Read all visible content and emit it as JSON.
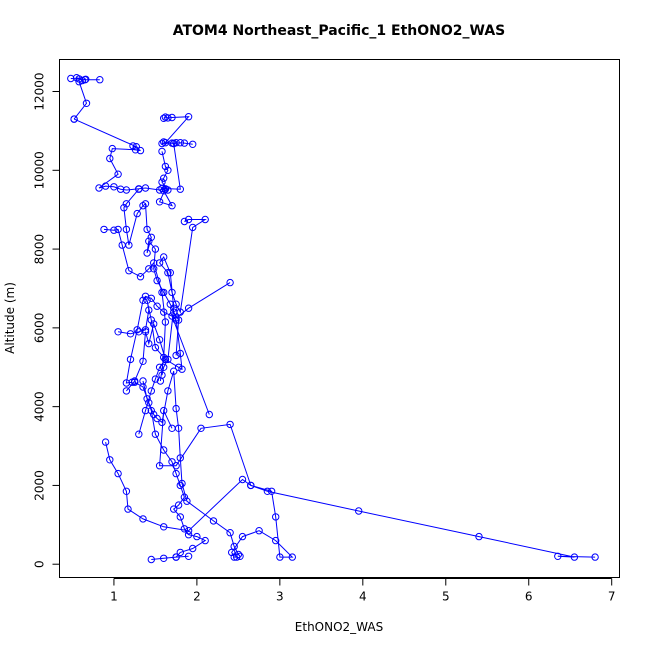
{
  "chart_data": {
    "type": "scatter",
    "title": "ATOM4 Northeast_Pacific_1 EthONO2_WAS",
    "xlabel": "EthONO2_WAS",
    "ylabel": "Altitude (m)",
    "xlim": [
      0.35,
      7.1
    ],
    "ylim": [
      -350,
      12800
    ],
    "xticks": [
      1,
      2,
      3,
      4,
      5,
      6,
      7
    ],
    "yticks": [
      0,
      2000,
      4000,
      6000,
      8000,
      10000,
      12000
    ],
    "grid": false,
    "legend": "none",
    "series_color": "#0000ff",
    "series": [
      {
        "x": [
          0.83,
          0.65,
          0.55,
          0.58,
          0.62,
          0.66,
          0.48
        ],
        "y": [
          12300,
          12300,
          12350,
          12320,
          12280,
          12310,
          12330
        ]
      },
      {
        "x": [
          0.52,
          0.67,
          0.58
        ],
        "y": [
          11300,
          11700,
          12250
        ]
      },
      {
        "x": [
          0.52,
          1.27,
          1.23,
          1.32,
          1.26,
          0.98,
          0.95,
          1.05,
          0.82,
          0.9,
          1.0,
          1.08,
          1.15,
          1.3,
          1.38,
          1.55,
          1.62
        ],
        "y": [
          11300,
          10600,
          10620,
          10500,
          10520,
          10550,
          10300,
          9900,
          9550,
          9600,
          9580,
          9520,
          9500,
          9530,
          9550,
          9500,
          9520
        ]
      },
      {
        "x": [
          1.6,
          1.62,
          1.65,
          1.7,
          1.9,
          1.62,
          1.58,
          1.7,
          1.75,
          1.72,
          1.8,
          1.85,
          1.95
        ],
        "y": [
          11320,
          11350,
          11330,
          11340,
          11360,
          10700,
          10680,
          10690,
          10700,
          10680,
          10700,
          10690,
          10660
        ]
      },
      {
        "x": [
          1.58,
          1.62,
          1.65,
          1.6,
          1.58,
          1.65,
          1.6,
          1.7,
          1.55,
          1.62,
          1.58,
          1.8,
          1.72,
          1.6
        ],
        "y": [
          10480,
          10100,
          10000,
          9800,
          9700,
          9500,
          9480,
          9100,
          9200,
          9530,
          9540,
          9520,
          10680,
          10720
        ]
      },
      {
        "x": [
          1.3,
          1.15,
          1.12,
          1.15,
          1.18,
          1.28,
          1.35,
          1.38,
          1.4,
          1.45,
          1.4,
          1.42,
          1.5,
          1.48,
          1.52,
          1.6,
          1.68,
          1.72,
          1.78,
          1.75
        ],
        "y": [
          9520,
          9150,
          9050,
          8500,
          8100,
          8900,
          9100,
          9150,
          8500,
          8300,
          7900,
          8200,
          8000,
          7500,
          7200,
          6900,
          6600,
          6400,
          6200,
          5300
        ]
      },
      {
        "x": [
          1.85,
          1.9,
          2.1,
          1.95,
          1.8,
          1.75,
          1.7,
          1.65,
          1.55,
          1.6,
          1.68,
          1.72,
          1.65,
          1.6,
          1.58
        ],
        "y": [
          8700,
          8750,
          8750,
          8550,
          6400,
          6600,
          6900,
          7400,
          7650,
          7800,
          7400,
          6500,
          5200,
          5000,
          4800
        ]
      },
      {
        "x": [
          0.88,
          1.0,
          1.05,
          1.1,
          1.18,
          1.32,
          1.42,
          1.48,
          1.58,
          1.62,
          1.6,
          1.56
        ],
        "y": [
          8500,
          8480,
          8500,
          8100,
          7450,
          7300,
          7500,
          7650,
          6900,
          6150,
          5250,
          4650
        ]
      },
      {
        "x": [
          2.4,
          1.9,
          1.75,
          1.6,
          1.52,
          1.45,
          1.38,
          1.35,
          1.28,
          1.2,
          1.15,
          1.22
        ],
        "y": [
          7150,
          6500,
          6250,
          6400,
          6550,
          6750,
          6800,
          6700,
          5950,
          5200,
          4600,
          4620
        ]
      },
      {
        "x": [
          1.05,
          1.2,
          1.3,
          1.38,
          1.42,
          1.4,
          1.45,
          1.5,
          1.62,
          1.78,
          1.82,
          1.8,
          1.75,
          1.7,
          2.15
        ],
        "y": [
          5900,
          5850,
          5900,
          5950,
          6450,
          6700,
          6200,
          5500,
          5200,
          5000,
          4950,
          5350,
          6200,
          6300,
          3800
        ]
      },
      {
        "x": [
          1.15,
          1.25,
          1.35,
          1.38,
          1.42,
          1.48,
          1.55,
          1.62,
          1.55,
          1.5,
          1.45,
          1.38,
          1.3
        ],
        "y": [
          4400,
          4650,
          5150,
          5900,
          5600,
          6100,
          5700,
          5200,
          5000,
          4700,
          4400,
          3900,
          3300
        ]
      },
      {
        "x": [
          1.25,
          1.35,
          1.42,
          1.48,
          1.52,
          1.58,
          1.65,
          1.72,
          1.75,
          1.78,
          1.8,
          1.82,
          1.88,
          2.2,
          2.4,
          2.45,
          2.5,
          2.52
        ],
        "y": [
          4620,
          4500,
          4100,
          3800,
          3700,
          3600,
          4400,
          4900,
          3950,
          3450,
          2700,
          2050,
          1600,
          1100,
          800,
          450,
          250,
          200
        ]
      },
      {
        "x": [
          1.35,
          1.4,
          1.45,
          1.5,
          1.6,
          1.7,
          1.75,
          1.8,
          1.85,
          1.78,
          1.72,
          1.8,
          1.85,
          1.9,
          2.0,
          2.1,
          1.95,
          1.8,
          1.75
        ],
        "y": [
          4650,
          4200,
          3900,
          3300,
          2900,
          2600,
          2300,
          2000,
          1700,
          1500,
          1400,
          1200,
          900,
          750,
          700,
          600,
          400,
          300,
          180
        ]
      },
      {
        "x": [
          0.9,
          0.95,
          1.05,
          1.15,
          1.17,
          1.35,
          1.6,
          1.9,
          2.55,
          2.65,
          2.85,
          3.95,
          5.4,
          6.55,
          6.35,
          6.8
        ],
        "y": [
          3100,
          2650,
          2300,
          1850,
          1400,
          1150,
          950,
          850,
          2150,
          2000,
          1850,
          1350,
          700,
          180,
          200,
          180
        ]
      },
      {
        "x": [
          1.7,
          1.6,
          1.55,
          1.75,
          2.05,
          2.4,
          2.65,
          2.9,
          2.95,
          3.0,
          3.15,
          2.95,
          2.75,
          2.55,
          2.42,
          2.45,
          2.48
        ],
        "y": [
          3450,
          3900,
          2500,
          2500,
          3450,
          3550,
          2000,
          1850,
          1200,
          180,
          180,
          600,
          850,
          700,
          300,
          180,
          180
        ]
      },
      {
        "x": [
          1.9,
          1.75,
          1.6,
          1.45
        ],
        "y": [
          200,
          180,
          150,
          120
        ]
      }
    ]
  }
}
